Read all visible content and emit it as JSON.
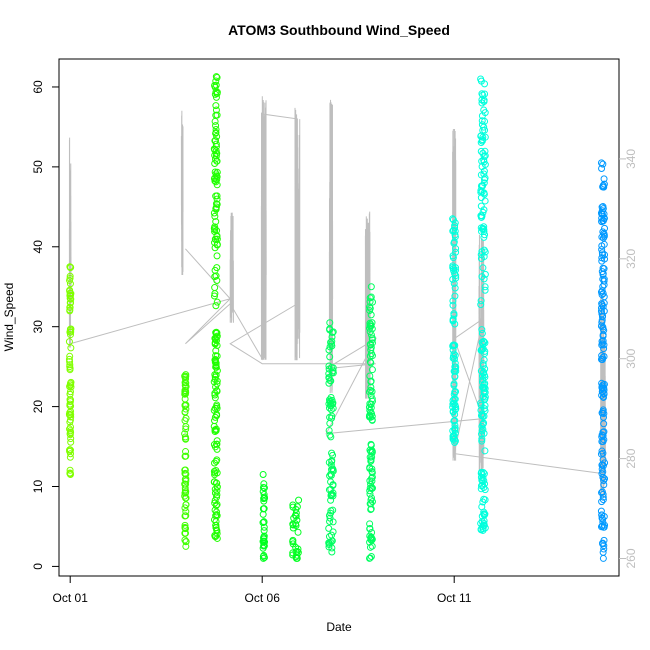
{
  "chart_data": {
    "type": "scatter",
    "title": "ATOM3 Southbound Wind_Speed",
    "xlabel": "Date",
    "ylabel": "Wind_Speed",
    "x_ticks": [
      "Oct 01",
      "Oct 06",
      "Oct 11"
    ],
    "y_ticks": [
      0,
      10,
      20,
      30,
      40,
      50,
      60
    ],
    "y_right_ticks": [
      260,
      280,
      300,
      320,
      340
    ],
    "xlim": [
      "2013-09-30T17:00",
      "2013-10-15T07:00"
    ],
    "ylim": [
      -1.2,
      63.5
    ],
    "y_right_lim": [
      256.5,
      360
    ],
    "grid": false,
    "colors": {
      "right_axis": "#BEBEBE",
      "line": "#BEBEBE",
      "axis": "#000000"
    },
    "series": [
      {
        "kind": "points",
        "color": "#80FF00",
        "clusters": [
          {
            "x": "2013-10-01T00:00",
            "width_h": 1,
            "ymin": 11.5,
            "ymax": 37.5
          }
        ]
      },
      {
        "kind": "points",
        "color": "#40FF00",
        "clusters": [
          {
            "x": "2013-10-04T00:00",
            "width_h": 1,
            "ymin": 2.5,
            "ymax": 24
          }
        ]
      },
      {
        "kind": "points",
        "color": "#20FF00",
        "clusters": [
          {
            "x": "2013-10-04T19:00",
            "width_h": 2,
            "ymin": 3.5,
            "ymax": 61.3
          }
        ]
      },
      {
        "kind": "points",
        "color": "#00FF20",
        "clusters": [
          {
            "x": "2013-10-06T01:00",
            "width_h": 1,
            "ymin": 1,
            "ymax": 11.5
          },
          {
            "x": "2013-10-06T21:00",
            "width_h": 4,
            "ymin": 1,
            "ymax": 8.3
          }
        ]
      },
      {
        "kind": "points",
        "color": "#00FF60",
        "clusters": [
          {
            "x": "2013-10-07T19:00",
            "width_h": 3,
            "ymin": 1.8,
            "ymax": 30.5
          },
          {
            "x": "2013-10-08T20:00",
            "width_h": 2,
            "ymin": 1,
            "ymax": 35
          }
        ]
      },
      {
        "kind": "points",
        "color": "#00FFDD",
        "clusters": [
          {
            "x": "2013-10-11T00:00",
            "width_h": 2,
            "ymin": 15.5,
            "ymax": 43.5
          },
          {
            "x": "2013-10-11T18:00",
            "width_h": 3,
            "ymin": 4.5,
            "ymax": 61
          }
        ]
      },
      {
        "kind": "points",
        "color": "#0099FF",
        "clusters": [
          {
            "x": "2013-10-14T21:00",
            "width_h": 2,
            "ymin": 1,
            "ymax": 50.5
          }
        ]
      },
      {
        "kind": "line",
        "axis": "right",
        "color": "#BEBEBE",
        "clusters": [
          {
            "x": "2013-10-01T00:00",
            "width_h": 1,
            "ymin": 300,
            "ymax": 345
          },
          {
            "x": "2013-10-03T22:00",
            "width_h": 1,
            "ymin": 315,
            "ymax": 350
          },
          {
            "x": "2013-10-05T05:00",
            "width_h": 2,
            "ymin": 306,
            "ymax": 330
          },
          {
            "x": "2013-10-06T01:00",
            "width_h": 3,
            "ymin": 297,
            "ymax": 353
          },
          {
            "x": "2013-10-06T22:00",
            "width_h": 3,
            "ymin": 297,
            "ymax": 351
          },
          {
            "x": "2013-10-07T19:00",
            "width_h": 2,
            "ymin": 290,
            "ymax": 352
          },
          {
            "x": "2013-10-08T18:00",
            "width_h": 3,
            "ymin": 290,
            "ymax": 330
          },
          {
            "x": "2013-10-11T00:00",
            "width_h": 2,
            "ymin": 276,
            "ymax": 348
          },
          {
            "x": "2013-10-11T17:00",
            "width_h": 3,
            "ymin": 275,
            "ymax": 325
          },
          {
            "x": "2013-10-14T21:00",
            "width_h": 3,
            "ymin": 270,
            "ymax": 313
          }
        ],
        "path": [
          [
            "2013-10-01T00:00",
            303
          ],
          [
            "2013-10-05T04:00",
            312
          ],
          [
            "2013-10-04T00:00",
            322
          ],
          [
            "2013-10-05T04:00",
            312
          ],
          [
            "2013-10-04T00:00",
            303
          ],
          [
            "2013-10-05T04:00",
            311
          ],
          [
            "2013-10-06T00:00",
            300
          ],
          [
            "2013-10-06T00:00",
            349
          ],
          [
            "2013-10-06T22:00",
            348
          ],
          [
            "2013-10-06T22:00",
            311
          ],
          [
            "2013-10-05T04:00",
            303
          ],
          [
            "2013-10-06T00:00",
            299
          ],
          [
            "2013-10-08T23:00",
            299
          ],
          [
            "2013-10-07T16:00",
            298
          ],
          [
            "2013-10-08T23:00",
            304
          ],
          [
            "2013-10-07T16:00",
            285
          ],
          [
            "2013-10-11T18:00",
            288
          ],
          [
            "2013-10-11T00:00",
            304
          ],
          [
            "2013-10-11T18:00",
            308
          ],
          [
            "2013-10-11T00:00",
            281
          ],
          [
            "2013-10-14T21:00",
            277
          ]
        ]
      }
    ]
  }
}
